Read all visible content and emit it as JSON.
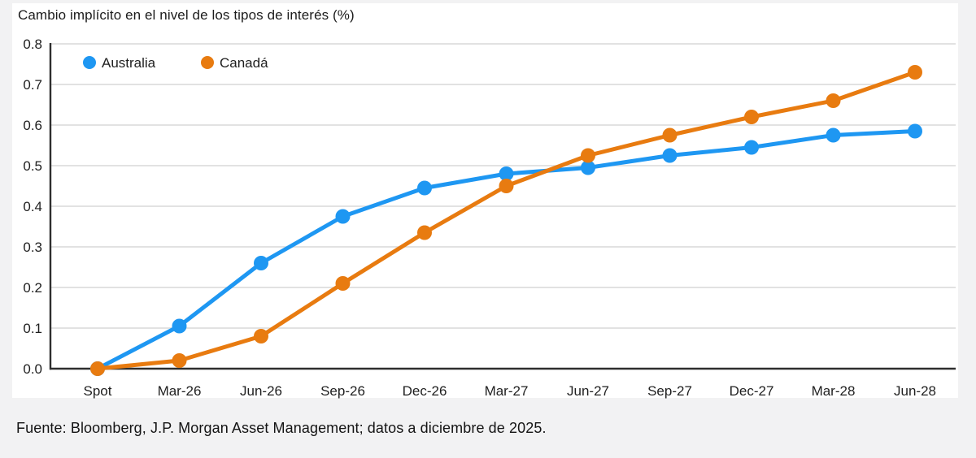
{
  "page": {
    "background": "#f2f2f3",
    "card_background": "#ffffff",
    "title": "Cambio implícito en el nivel de los tipos de interés (%)",
    "source": "Fuente: Bloomberg, J.P. Morgan Asset Management; datos a diciembre de 2025."
  },
  "chart_data": {
    "type": "line",
    "title": "Cambio implícito en el nivel de los tipos de interés (%)",
    "categories": [
      "Spot",
      "Mar-26",
      "Jun-26",
      "Sep-26",
      "Dec-26",
      "Mar-27",
      "Jun-27",
      "Sep-27",
      "Dec-27",
      "Mar-28",
      "Jun-28"
    ],
    "series": [
      {
        "name": "Australia",
        "color": "#1e97f2",
        "values": [
          0.0,
          0.105,
          0.26,
          0.375,
          0.445,
          0.48,
          0.495,
          0.525,
          0.545,
          0.575,
          0.585
        ]
      },
      {
        "name": "Canadá",
        "color": "#e87b10",
        "values": [
          0.0,
          0.02,
          0.08,
          0.21,
          0.335,
          0.45,
          0.525,
          0.575,
          0.62,
          0.66,
          0.73
        ]
      }
    ],
    "xlabel": "",
    "ylabel": "",
    "ylim": [
      0.0,
      0.8
    ],
    "y_ticks": [
      0.8,
      0.7,
      0.6,
      0.5,
      0.4,
      0.3,
      0.2,
      0.1,
      0.0
    ],
    "y_tick_decimals": 1,
    "grid": "horizontal",
    "gridline_color": "#d9d9d9",
    "axis_color": "#2e2e2e",
    "text_color": "#1f1f1f",
    "legend_position": "top-left-inside"
  }
}
